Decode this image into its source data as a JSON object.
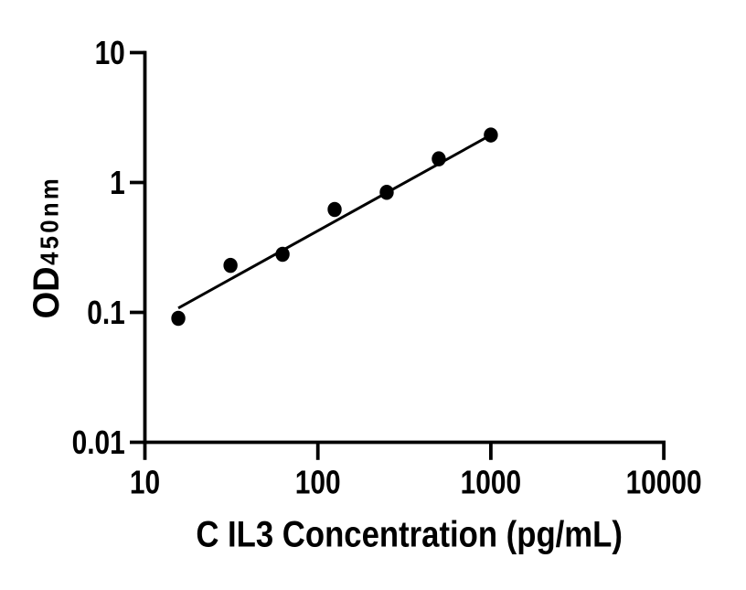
{
  "figure": {
    "background_color": "#ffffff",
    "ink_color": "#000000"
  },
  "chart_data": {
    "type": "scatter",
    "title": "",
    "xlabel": "C IL3 Concentration (pg/mL)",
    "ylabel_main": "OD",
    "ylabel_sub": "450nm",
    "x_scale": "log",
    "y_scale": "log",
    "xlim": [
      10,
      10000
    ],
    "ylim": [
      0.01,
      10
    ],
    "grid": false,
    "legend": null,
    "marker": {
      "shape": "filled-circle",
      "color": "#000000"
    },
    "x_ticks": [
      {
        "value": 10,
        "label": "10"
      },
      {
        "value": 100,
        "label": "100"
      },
      {
        "value": 1000,
        "label": "1000"
      },
      {
        "value": 10000,
        "label": "10000"
      }
    ],
    "y_ticks": [
      {
        "value": 10,
        "label": "10"
      },
      {
        "value": 1,
        "label": "1"
      },
      {
        "value": 0.1,
        "label": "0.1"
      },
      {
        "value": 0.01,
        "label": "0.01"
      }
    ],
    "points": [
      {
        "x": 15.6,
        "y": 0.09
      },
      {
        "x": 31.25,
        "y": 0.23
      },
      {
        "x": 62.5,
        "y": 0.28
      },
      {
        "x": 125,
        "y": 0.62
      },
      {
        "x": 250,
        "y": 0.84
      },
      {
        "x": 500,
        "y": 1.52
      },
      {
        "x": 1000,
        "y": 2.32
      }
    ],
    "trendline": {
      "x1": 15.6,
      "y1": 0.108,
      "x2": 1000,
      "y2": 2.32
    }
  }
}
